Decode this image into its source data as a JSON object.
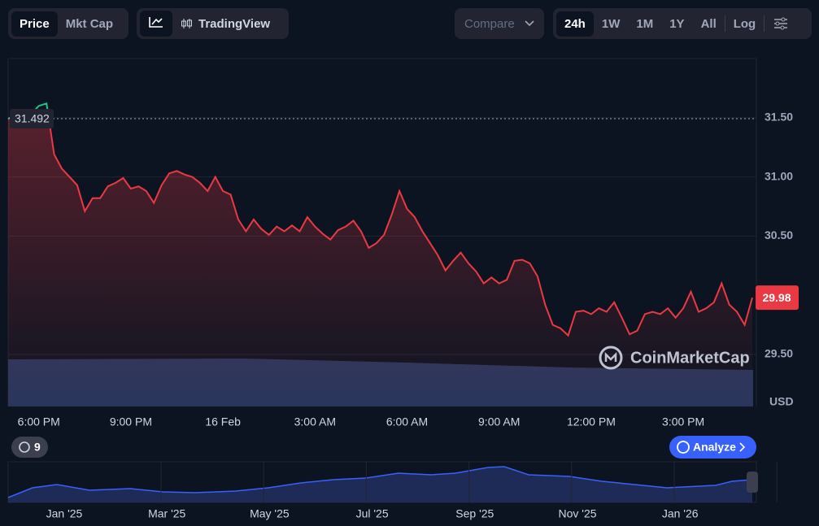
{
  "ui": {
    "tabs": [
      "Price",
      "Mkt Cap"
    ],
    "tools": [
      "TradingView"
    ],
    "compare": "Compare",
    "ranges": [
      "24h",
      "1W",
      "1M",
      "1Y",
      "All",
      "Log"
    ],
    "currency": "USD",
    "history_count": "9",
    "analyze": "Analyze",
    "watermark": "CoinMarketCap",
    "navigator_labels": [
      "Jan '25",
      "Mar '25",
      "May '25",
      "Jul '25",
      "Sep '25",
      "Nov '25",
      "Jan '26"
    ]
  },
  "chart_data": {
    "type": "line",
    "categories": [
      null,
      null,
      null,
      null,
      "6:00 PM",
      null,
      null,
      null,
      null,
      null,
      null,
      null,
      null,
      null,
      null,
      null,
      "9:00 PM",
      null,
      null,
      null,
      null,
      null,
      null,
      null,
      null,
      null,
      null,
      null,
      "16 Feb",
      null,
      null,
      null,
      null,
      null,
      null,
      null,
      null,
      null,
      null,
      null,
      "3:00 AM",
      null,
      null,
      null,
      null,
      null,
      null,
      null,
      null,
      null,
      null,
      null,
      "6:00 AM",
      null,
      null,
      null,
      null,
      null,
      null,
      null,
      null,
      null,
      null,
      null,
      "9:00 AM",
      null,
      null,
      null,
      null,
      null,
      null,
      null,
      null,
      null,
      null,
      null,
      "12:00 PM",
      null,
      null,
      null,
      null,
      null,
      null,
      null,
      null,
      null,
      null,
      null,
      "3:00 PM",
      null,
      null,
      null,
      null,
      null,
      null,
      null,
      null,
      null
    ],
    "series": [
      {
        "color": "#ea3943",
        "color_above": "#16c784",
        "values": [
          31.49,
          31.53,
          31.55,
          31.53,
          31.6,
          31.62,
          31.19,
          31.07,
          31.0,
          30.93,
          30.71,
          30.82,
          30.82,
          30.92,
          30.95,
          30.99,
          30.9,
          30.92,
          30.88,
          30.78,
          30.93,
          31.03,
          31.05,
          31.02,
          31.0,
          30.95,
          30.88,
          31.0,
          30.88,
          30.85,
          30.64,
          30.54,
          30.64,
          30.56,
          30.51,
          30.58,
          30.54,
          30.59,
          30.54,
          30.66,
          30.58,
          30.52,
          30.47,
          30.55,
          30.58,
          30.63,
          30.54,
          30.4,
          30.44,
          30.51,
          30.68,
          30.88,
          30.73,
          30.66,
          30.54,
          30.44,
          30.34,
          30.21,
          30.29,
          30.36,
          30.27,
          30.2,
          30.1,
          30.15,
          30.1,
          30.13,
          30.29,
          30.3,
          30.27,
          30.16,
          29.92,
          29.75,
          29.72,
          29.66,
          29.86,
          29.87,
          29.84,
          29.89,
          29.86,
          29.94,
          29.81,
          29.67,
          29.7,
          29.84,
          29.86,
          29.84,
          29.89,
          29.81,
          29.89,
          30.03,
          29.86,
          29.89,
          29.94,
          30.1,
          29.92,
          29.86,
          29.75,
          29.98
        ]
      }
    ],
    "reference": 31.492,
    "ylim": [
      29.06,
      32.0
    ],
    "yticks": [
      {
        "value": 29.5,
        "label": "29.50"
      },
      {
        "value": 30.5,
        "label": "30.50"
      },
      {
        "value": 31.0,
        "label": "31.00"
      },
      {
        "value": 31.5,
        "label": "31.50"
      }
    ],
    "grid": true
  }
}
